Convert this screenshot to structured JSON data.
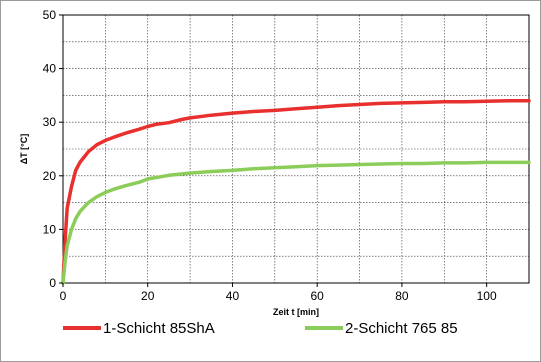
{
  "chart_data": {
    "type": "line",
    "xlabel": "Zeit t  [min]",
    "ylabel": "ΔT  [°C]",
    "xlim": [
      0,
      110
    ],
    "ylim": [
      0,
      50
    ],
    "xticks": [
      0,
      20,
      40,
      60,
      80,
      100
    ],
    "yticks": [
      0,
      10,
      20,
      30,
      40,
      50
    ],
    "minor_x_grid_step": 10,
    "minor_y_grid_step": 5,
    "grid": true,
    "legend_position": "bottom",
    "series": [
      {
        "name": "1-Schicht 85ShA",
        "color": "#e8302e",
        "x": [
          0,
          0.5,
          1,
          2,
          3,
          4,
          5,
          6,
          8,
          10,
          12,
          15,
          18,
          20,
          22,
          25,
          28,
          30,
          35,
          40,
          45,
          50,
          55,
          60,
          65,
          70,
          75,
          80,
          85,
          90,
          95,
          100,
          105,
          110
        ],
        "y": [
          0,
          8,
          14,
          18,
          21,
          22.5,
          23.5,
          24.5,
          25.8,
          26.6,
          27.2,
          28,
          28.7,
          29.2,
          29.6,
          29.9,
          30.5,
          30.8,
          31.3,
          31.7,
          32,
          32.2,
          32.5,
          32.8,
          33.1,
          33.3,
          33.5,
          33.6,
          33.7,
          33.8,
          33.8,
          33.9,
          34,
          34
        ]
      },
      {
        "name": "2-Schicht 765 85",
        "color": "#8ccd5a",
        "x": [
          0,
          0.5,
          1,
          2,
          3,
          4,
          5,
          6,
          8,
          10,
          12,
          15,
          18,
          20,
          25,
          30,
          35,
          40,
          45,
          50,
          55,
          60,
          65,
          70,
          75,
          80,
          85,
          90,
          95,
          100,
          105,
          110
        ],
        "y": [
          0,
          4,
          7,
          10,
          12,
          13.3,
          14.2,
          15,
          16.1,
          16.9,
          17.5,
          18.2,
          18.8,
          19.4,
          20.1,
          20.5,
          20.8,
          21,
          21.3,
          21.5,
          21.7,
          21.9,
          22,
          22.1,
          22.2,
          22.3,
          22.3,
          22.4,
          22.4,
          22.5,
          22.5,
          22.5
        ]
      }
    ]
  }
}
